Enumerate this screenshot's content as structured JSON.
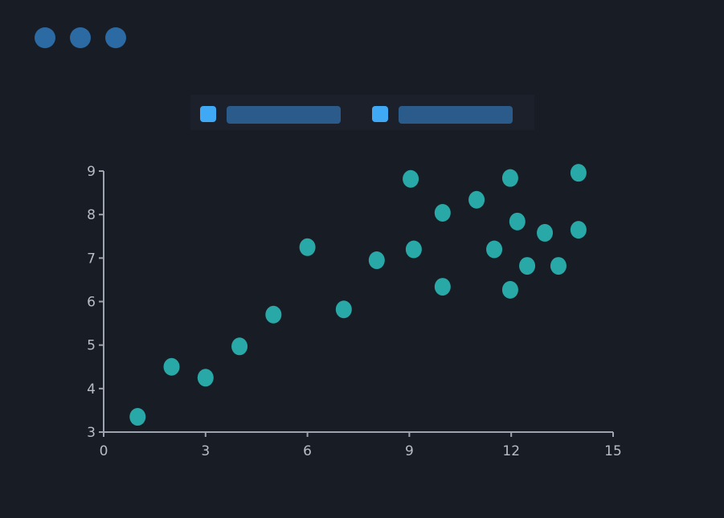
{
  "window_controls": [
    "dot",
    "dot",
    "dot"
  ],
  "colors": {
    "background": "#181c24",
    "point": "#29a8a8",
    "legend_swatch": "#3fa9f5",
    "axis": "#9ea3b0",
    "window_dot": "#2c6aa3"
  },
  "chart_data": {
    "type": "scatter",
    "title": "",
    "xlabel": "",
    "ylabel": "",
    "xlim": [
      0,
      15
    ],
    "ylim": [
      3,
      9
    ],
    "xticks": [
      "0",
      "3",
      "6",
      "9",
      "12",
      "15"
    ],
    "yticks": [
      "3",
      "4",
      "5",
      "6",
      "7",
      "8",
      "9"
    ],
    "grid": false,
    "legend": "top-center",
    "series": [
      {
        "x": [
          1,
          2,
          3,
          4,
          5,
          6,
          7.07,
          8.04,
          9.04,
          9.13,
          9.98,
          9.98,
          10.98,
          11.5,
          11.97,
          11.97,
          12.18,
          12.47,
          12.99,
          13.39,
          13.98,
          13.98
        ],
        "y": [
          3.35,
          4.5,
          4.25,
          4.97,
          5.7,
          7.25,
          5.82,
          6.95,
          8.82,
          7.2,
          8.04,
          6.34,
          8.34,
          7.2,
          8.84,
          6.27,
          7.84,
          6.82,
          7.58,
          6.82,
          8.96,
          7.65
        ]
      }
    ]
  }
}
